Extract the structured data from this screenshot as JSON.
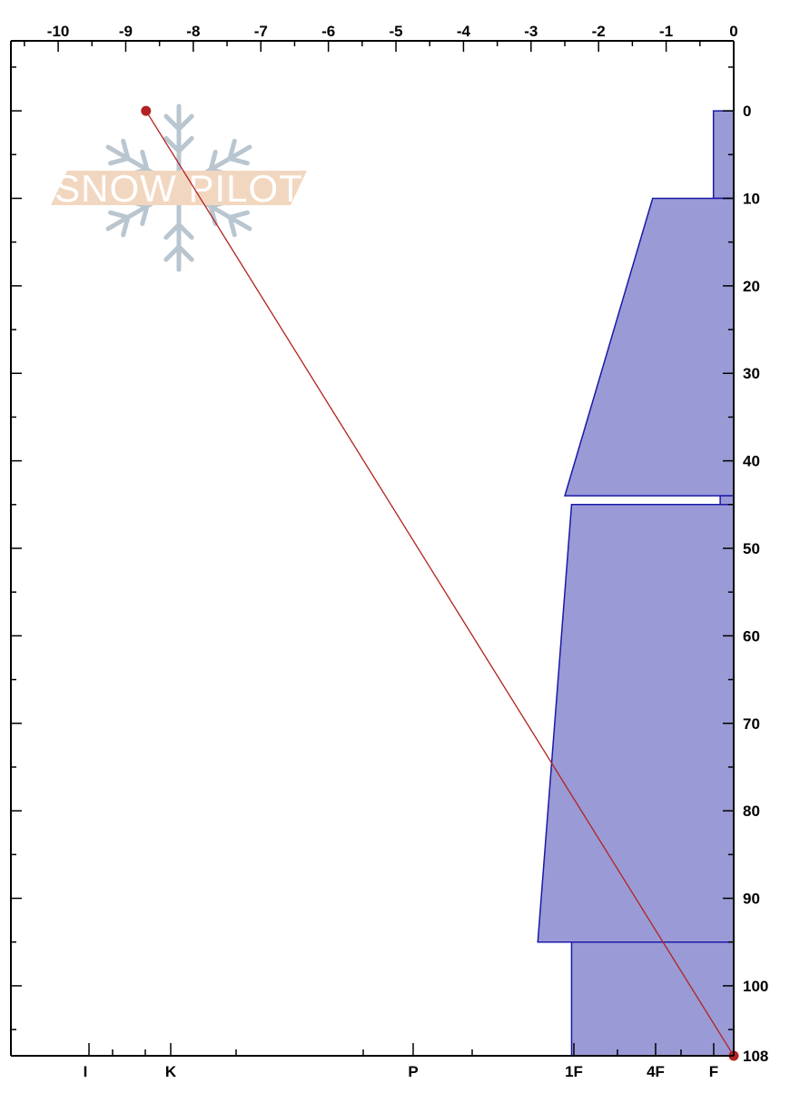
{
  "chart_data": {
    "type": "area",
    "x_axis_top": {
      "ticks": [
        -10,
        -9,
        -8,
        -7,
        -6,
        -5,
        -4,
        -3,
        -2,
        -1,
        0
      ],
      "range": [
        -10.7,
        0
      ]
    },
    "y_axis_right": {
      "ticks": [
        0,
        10,
        20,
        30,
        40,
        50,
        60,
        70,
        80,
        90,
        100,
        108
      ],
      "range": [
        -8,
        108
      ],
      "inverted": true
    },
    "hardness_axis_bottom": {
      "labels": [
        "I",
        "K",
        "P",
        "1F",
        "4F",
        "F"
      ]
    },
    "layers": [
      {
        "top": 0,
        "bottom": 10,
        "hardness_top": -0.3,
        "hardness_bottom": -0.3
      },
      {
        "top": 10,
        "bottom": 44,
        "hardness_top": -1.2,
        "hardness_bottom": -2.5
      },
      {
        "top": 44,
        "bottom": 45,
        "hardness_top": -0.2,
        "hardness_bottom": -0.2
      },
      {
        "top": 45,
        "bottom": 95,
        "hardness_top": -2.4,
        "hardness_bottom": -2.9
      },
      {
        "top": 95,
        "bottom": 108,
        "hardness_top": -2.4,
        "hardness_bottom": -2.4
      }
    ],
    "temperature_profile": [
      {
        "temp": -8.7,
        "depth": 0
      },
      {
        "temp": 0,
        "depth": 108
      }
    ],
    "colors": {
      "layer_fill": "#9a9ad6",
      "layer_stroke": "#1a1aa8",
      "temperature": "#b22222",
      "axis": "#000000"
    }
  },
  "watermark": {
    "text": "SNOW PILOT",
    "icon": "snowflake-icon",
    "band_color": "#f2d7c0",
    "flake_color": "#b9c6d0"
  }
}
